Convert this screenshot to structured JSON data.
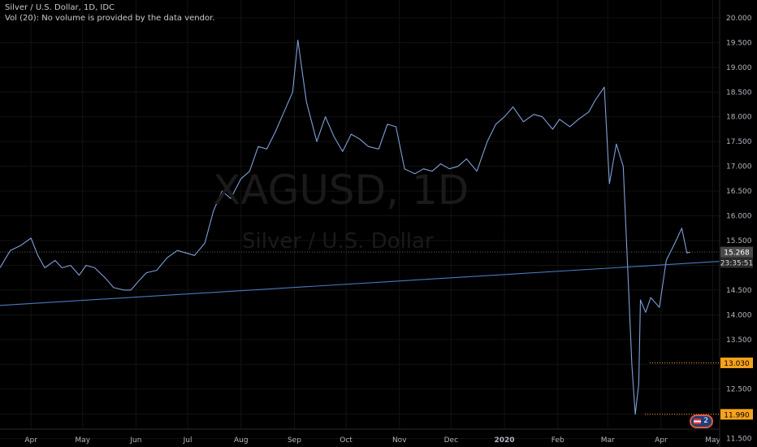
{
  "header": {
    "symbol_line": "Silver / U.S. Dollar, 1D, IDC",
    "volume_line": "Vol (20): No volume is provided by the data vendor."
  },
  "watermark": {
    "ticker": "XAGUSD, 1D",
    "name": "Silver / U.S. Dollar"
  },
  "badges": {
    "last_price": "15.268",
    "countdown": "23:35:51",
    "low_level_1": "13.030",
    "low_level_2": "11.990"
  },
  "alerts_badge": {
    "count": "2"
  },
  "colors": {
    "background": "#000000",
    "price_line": "#7f9fd6",
    "trend_line": "#4a78c0",
    "grid": "#121212",
    "axis_text": "#b2b5be",
    "badge_orange": "#f7a21b",
    "badge_gray": "#4a4a4a"
  },
  "chart_data": {
    "type": "line",
    "title": "Silver / U.S. Dollar, 1D, IDC",
    "x_ticks": [
      "Apr",
      "May",
      "Jun",
      "Jul",
      "Aug",
      "Sep",
      "Oct",
      "Nov",
      "Dec",
      "2020",
      "Feb",
      "Mar",
      "Apr",
      "May"
    ],
    "y_ticks": [
      11.5,
      12.0,
      12.5,
      13.0,
      13.5,
      14.0,
      14.5,
      15.0,
      15.5,
      16.0,
      16.5,
      17.0,
      17.5,
      18.0,
      18.5,
      19.0,
      19.5,
      20.0
    ],
    "ylim": [
      11.33,
      20.36
    ],
    "grid": true,
    "series": [
      {
        "x": [
          "2019-03-14",
          "2019-03-20",
          "2019-03-26",
          "2019-04-01",
          "2019-04-05",
          "2019-04-09",
          "2019-04-15",
          "2019-04-19",
          "2019-04-24",
          "2019-04-29",
          "2019-05-03",
          "2019-05-08",
          "2019-05-14",
          "2019-05-19",
          "2019-05-25",
          "2019-05-29",
          "2019-06-03",
          "2019-06-07",
          "2019-06-13",
          "2019-06-19",
          "2019-06-25",
          "2019-06-30",
          "2019-07-05",
          "2019-07-11",
          "2019-07-16",
          "2019-07-21",
          "2019-07-26",
          "2019-08-01",
          "2019-08-06",
          "2019-08-11",
          "2019-08-16",
          "2019-08-21",
          "2019-08-26",
          "2019-08-31",
          "2019-09-03",
          "2019-09-08",
          "2019-09-14",
          "2019-09-19",
          "2019-09-24",
          "2019-09-29",
          "2019-10-04",
          "2019-10-09",
          "2019-10-14",
          "2019-10-20",
          "2019-10-25",
          "2019-10-30",
          "2019-11-04",
          "2019-11-10",
          "2019-11-15",
          "2019-11-20",
          "2019-11-25",
          "2019-11-30",
          "2019-12-05",
          "2019-12-10",
          "2019-12-16",
          "2019-12-22",
          "2019-12-27",
          "2020-01-01",
          "2020-01-06",
          "2020-01-08",
          "2020-01-12",
          "2020-01-18",
          "2020-01-23",
          "2020-01-29",
          "2020-02-02",
          "2020-02-08",
          "2020-02-13",
          "2020-02-19",
          "2020-02-23",
          "2020-02-28",
          "2020-03-02",
          "2020-03-06",
          "2020-03-10",
          "2020-03-13",
          "2020-03-15",
          "2020-03-17",
          "2020-03-19",
          "2020-03-20",
          "2020-03-23",
          "2020-03-26",
          "2020-03-31",
          "2020-04-04",
          "2020-04-09",
          "2020-04-13",
          "2020-04-16",
          "2020-04-18"
        ],
        "values": [
          14.95,
          15.3,
          15.4,
          15.55,
          15.2,
          14.95,
          15.1,
          14.95,
          15.0,
          14.8,
          15.0,
          14.95,
          14.75,
          14.55,
          14.5,
          14.5,
          14.7,
          14.85,
          14.9,
          15.15,
          15.3,
          15.25,
          15.2,
          15.45,
          16.1,
          16.5,
          16.35,
          16.75,
          16.9,
          17.4,
          17.35,
          17.7,
          18.1,
          18.5,
          19.55,
          18.3,
          17.5,
          18.0,
          17.6,
          17.3,
          17.65,
          17.55,
          17.4,
          17.35,
          17.85,
          17.8,
          16.95,
          16.85,
          16.95,
          16.9,
          17.05,
          16.95,
          17.0,
          17.15,
          16.9,
          17.5,
          17.85,
          18.0,
          18.2,
          18.1,
          17.9,
          18.05,
          18.0,
          17.75,
          17.95,
          17.8,
          17.95,
          18.1,
          18.35,
          18.6,
          16.65,
          17.45,
          17.0,
          14.6,
          13.0,
          11.99,
          12.6,
          14.3,
          14.05,
          14.35,
          14.15,
          15.1,
          15.45,
          15.75,
          15.25,
          15.268
        ]
      },
      {
        "x": [
          "2019-03-14",
          "2020-05-05"
        ],
        "values": [
          14.19,
          15.08
        ]
      }
    ]
  }
}
